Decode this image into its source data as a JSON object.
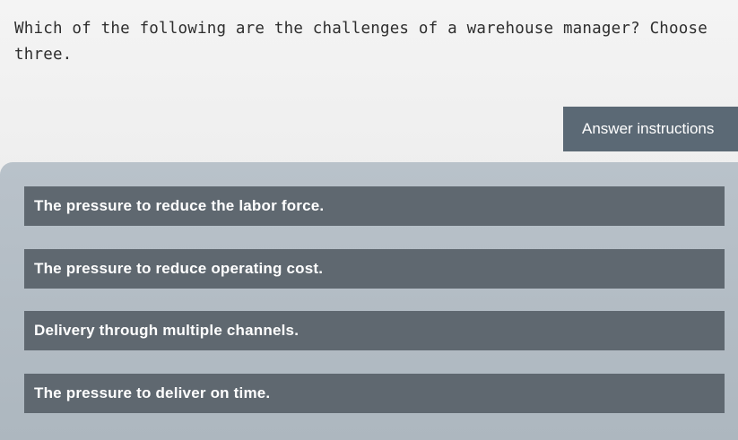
{
  "question": {
    "text": "Which of the following are the challenges of a warehouse manager? Choose three."
  },
  "answer_instructions_label": "Answer instructions",
  "options": [
    {
      "label": "The pressure to reduce the labor force."
    },
    {
      "label": "The pressure to reduce operating cost."
    },
    {
      "label": "Delivery through multiple channels."
    },
    {
      "label": "The pressure to deliver on time."
    }
  ],
  "colors": {
    "option_bg": "#5f6870",
    "panel_bg": "#b3bdc5",
    "button_bg": "#5b6975"
  }
}
